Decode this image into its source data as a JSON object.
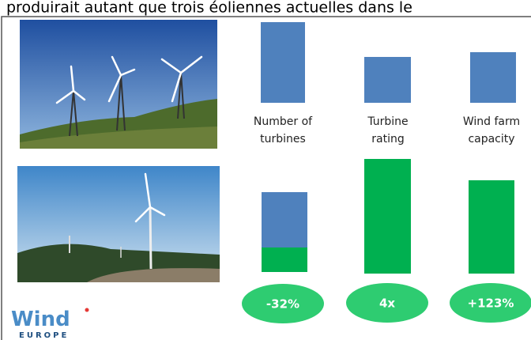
{
  "header": {
    "text": "produirait autant que trois éoliennes actuelles dans le"
  },
  "labels": [
    [
      "Number of",
      "turbines"
    ],
    [
      "Turbine",
      "rating"
    ],
    [
      "Wind farm",
      "capacity"
    ]
  ],
  "badges": [
    "-32%",
    "4x",
    "+123%"
  ],
  "logo": {
    "name": "Wind",
    "sub": "EUROPE"
  }
}
